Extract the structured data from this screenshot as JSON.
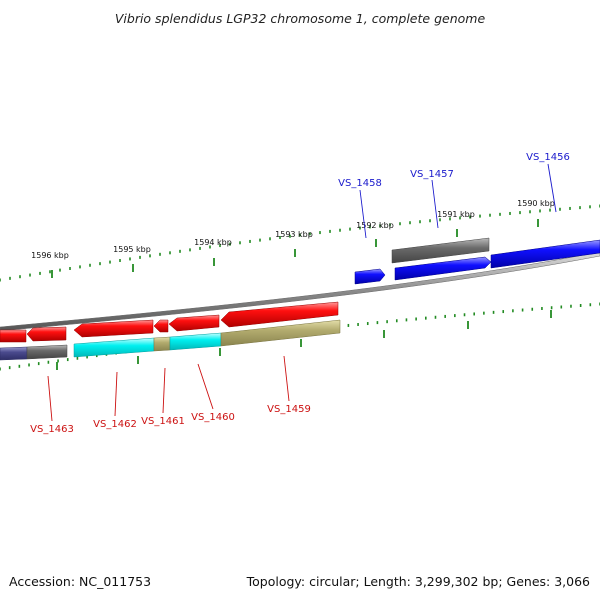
{
  "title": "Vibrio splendidus LGP32 chromosome 1, complete genome",
  "footer": {
    "accession": "Accession: NC_011753",
    "topology": "Topology: circular; Length: 3,299,302 bp; Genes: 3,066"
  },
  "colors": {
    "forward_gene": "#0000ee",
    "reverse_gene": "#ee0000",
    "forward_label": "#1a1acc",
    "reverse_label": "#cc1111",
    "backbone": "#888888",
    "tick": "#228b22",
    "gray_feature": "#666666",
    "cyan_feature": "#00eeee",
    "olive_feature": "#aaa366",
    "slate_feature": "#444488"
  },
  "ticks": [
    "1596 kbp",
    "1595 kbp",
    "1594 kbp",
    "1593 kbp",
    "1592 kbp",
    "1591 kbp",
    "1590 kbp"
  ],
  "forward_genes": [
    "VS_1458",
    "VS_1457",
    "VS_1456"
  ],
  "reverse_genes": [
    "VS_1463",
    "VS_1462",
    "VS_1461",
    "VS_1460",
    "VS_1459"
  ]
}
